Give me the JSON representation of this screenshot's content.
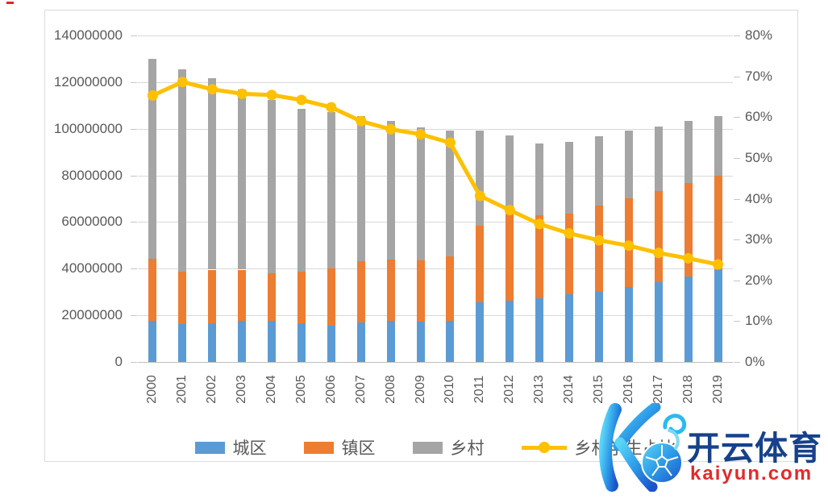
{
  "watermark": {
    "brand": "开云体育",
    "domain": "kaiyun.com"
  },
  "legend": {
    "items": [
      {
        "label": "城区",
        "swatch": "rect",
        "color": "#5B9BD5"
      },
      {
        "label": "镇区",
        "swatch": "rect",
        "color": "#ED7D31"
      },
      {
        "label": "乡村",
        "swatch": "rect",
        "color": "#A5A5A5"
      },
      {
        "label": "乡村学生占比",
        "swatch": "line",
        "color": "#FFC000"
      }
    ]
  },
  "chart_data": {
    "type": "bar",
    "subtype": "stacked-bars-with-line",
    "title": "",
    "categories": [
      "2000",
      "2001",
      "2002",
      "2003",
      "2004",
      "2005",
      "2006",
      "2007",
      "2008",
      "2009",
      "2010",
      "2011",
      "2012",
      "2013",
      "2014",
      "2015",
      "2016",
      "2017",
      "2018",
      "2019"
    ],
    "series": [
      {
        "name": "城区",
        "type": "bar",
        "color": "#5B9BD5",
        "values": [
          17500000,
          16200000,
          16700000,
          17500000,
          17800000,
          16700000,
          15500000,
          16900000,
          17600000,
          17300000,
          17800000,
          25500000,
          26300000,
          27200000,
          29200000,
          30100000,
          32300000,
          34100000,
          36700000,
          39300000
        ]
      },
      {
        "name": "镇区",
        "type": "bar",
        "color": "#ED7D31",
        "values": [
          26800000,
          22500000,
          22900000,
          22100000,
          20400000,
          21900000,
          24600000,
          26200000,
          26300000,
          26300000,
          27500000,
          32800000,
          37100000,
          35700000,
          34400000,
          36900000,
          37800000,
          39100000,
          40200000,
          40700000
        ]
      },
      {
        "name": "乡村",
        "type": "bar",
        "color": "#A5A5A5",
        "values": [
          85800000,
          86700000,
          82000000,
          77300000,
          74300000,
          70000000,
          67000000,
          62500000,
          59400000,
          57100000,
          54100000,
          41000000,
          33600000,
          30700000,
          30900000,
          29900000,
          29000000,
          27700000,
          26500000,
          25600000
        ]
      },
      {
        "name": "乡村学生占比",
        "type": "line",
        "axis": "right",
        "color": "#FFC000",
        "values_pct": [
          65.3,
          68.6,
          66.8,
          65.7,
          65.4,
          64.2,
          62.4,
          59.0,
          57.0,
          55.8,
          53.7,
          40.7,
          37.2,
          33.8,
          31.5,
          29.8,
          28.5,
          26.7,
          25.4,
          23.9
        ]
      }
    ],
    "left_axis": {
      "max": 140000000,
      "min": 0,
      "tick_labels": [
        "0",
        "20000000",
        "40000000",
        "60000000",
        "80000000",
        "100000000",
        "120000000",
        "140000000"
      ],
      "tick_values": [
        0,
        20000000,
        40000000,
        60000000,
        80000000,
        100000000,
        120000000,
        140000000
      ]
    },
    "right_axis": {
      "max": 80,
      "min": 0,
      "tick_labels": [
        "0%",
        "10%",
        "20%",
        "30%",
        "40%",
        "50%",
        "60%",
        "70%",
        "80%"
      ],
      "tick_values": [
        0,
        10,
        20,
        30,
        40,
        50,
        60,
        70,
        80
      ]
    },
    "grid": true,
    "legend_position": "bottom"
  }
}
